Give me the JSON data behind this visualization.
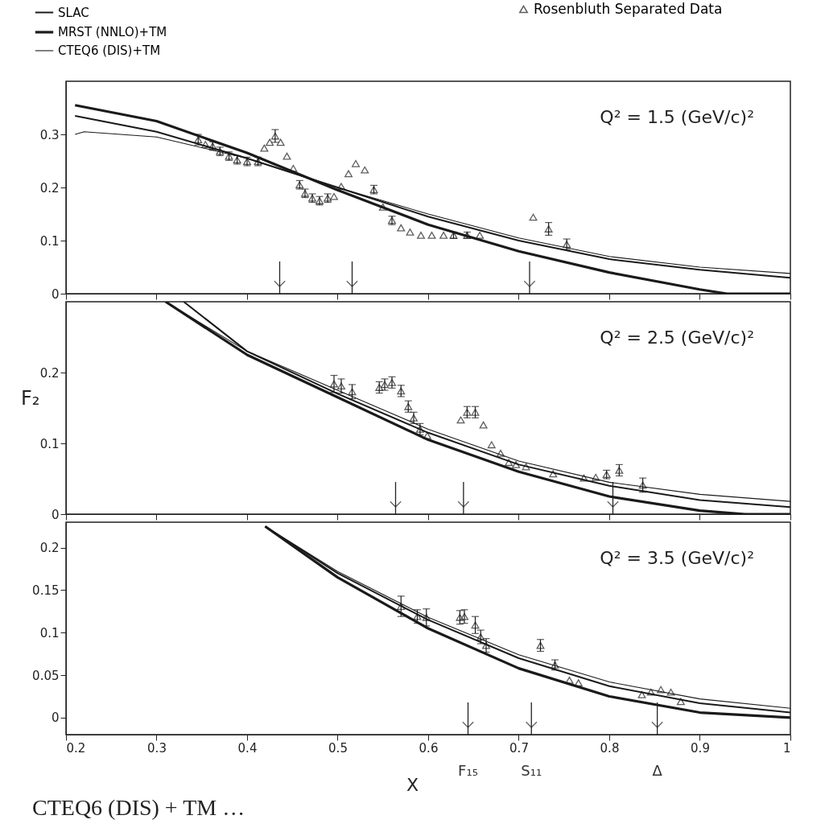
{
  "chart_data": [
    {
      "type": "line",
      "xlim": [
        0.2,
        1.0
      ],
      "xticks": [
        0.2,
        0.3,
        0.4,
        0.5,
        0.6,
        0.7,
        0.8,
        0.9,
        1
      ],
      "ylim": [
        0,
        0.4
      ],
      "yticks": [
        0,
        0.1,
        0.2,
        0.3
      ],
      "tick_labels": "y",
      "grid": false,
      "legend": "top",
      "annotations": [
        "Q² = 1.5 (GeV/c)²"
      ],
      "ref_lines": [
        {
          "axis": "x",
          "value": 0.436
        },
        {
          "axis": "x",
          "value": 0.516
        },
        {
          "axis": "x",
          "value": 0.712
        }
      ],
      "series": [
        {
          "name": "SLAC",
          "color": "#1a1a1a",
          "x": [
            0.21,
            0.3,
            0.4,
            0.5,
            0.6,
            0.7,
            0.8,
            0.9,
            1.0
          ],
          "values": [
            0.335,
            0.305,
            0.255,
            0.2,
            0.145,
            0.1,
            0.065,
            0.045,
            0.03
          ]
        },
        {
          "name": "MRST (NNLO)+TM",
          "color": "#1a1a1a",
          "x": [
            0.21,
            0.3,
            0.4,
            0.5,
            0.6,
            0.7,
            0.8,
            0.9,
            0.93,
            1.0
          ],
          "values": [
            0.355,
            0.325,
            0.265,
            0.195,
            0.13,
            0.08,
            0.04,
            0.008,
            0,
            0
          ]
        },
        {
          "name": "CTEQ6 (DIS)+TM",
          "color": "#1a1a1a",
          "x": [
            0.21,
            0.22,
            0.3,
            0.4,
            0.5,
            0.6,
            0.7,
            0.8,
            0.9,
            1.0
          ],
          "values": [
            0.3,
            0.305,
            0.295,
            0.255,
            0.2,
            0.15,
            0.105,
            0.07,
            0.05,
            0.038
          ]
        },
        {
          "name": "Rosenbluth Separated Data",
          "type": "scatter",
          "marker": "triangle",
          "color": "#1a1a1a",
          "x": [
            0.346,
            0.354,
            0.362,
            0.37,
            0.38,
            0.389,
            0.4,
            0.412,
            0.419,
            0.425,
            0.431,
            0.437,
            0.444,
            0.451,
            0.458,
            0.464,
            0.472,
            0.48,
            0.489,
            0.496,
            0.504,
            0.512,
            0.52,
            0.53,
            0.54,
            0.55,
            0.56,
            0.57,
            0.58,
            0.592,
            0.604,
            0.617,
            0.628,
            0.643,
            0.657,
            0.716,
            0.733,
            0.753
          ],
          "values": [
            0.29,
            0.281,
            0.278,
            0.268,
            0.259,
            0.252,
            0.249,
            0.249,
            0.274,
            0.285,
            0.297,
            0.285,
            0.259,
            0.236,
            0.205,
            0.189,
            0.18,
            0.175,
            0.18,
            0.183,
            0.202,
            0.226,
            0.245,
            0.233,
            0.196,
            0.163,
            0.138,
            0.124,
            0.116,
            0.11,
            0.11,
            0.11,
            0.11,
            0.11,
            0.11,
            0.144,
            0.122,
            0.093
          ],
          "errors": [
            0.01,
            null,
            0.008,
            0.008,
            0.008,
            0.008,
            0.008,
            0.008,
            null,
            null,
            0.012,
            null,
            null,
            null,
            0.008,
            0.008,
            0.008,
            0.008,
            0.008,
            null,
            null,
            null,
            null,
            null,
            0.008,
            null,
            0.008,
            null,
            null,
            null,
            null,
            null,
            0.006,
            0.006,
            null,
            null,
            0.012,
            0.01
          ]
        }
      ]
    },
    {
      "type": "line",
      "xlim": [
        0.2,
        1.0
      ],
      "xticks": [
        0.2,
        0.3,
        0.4,
        0.5,
        0.6,
        0.7,
        0.8,
        0.9,
        1
      ],
      "ylim": [
        0,
        0.3
      ],
      "yticks": [
        0,
        0.1,
        0.2
      ],
      "tick_labels": "y",
      "grid": false,
      "ylabel": "F₂",
      "annotations": [
        "Q² = 2.5 (GeV/c)²"
      ],
      "ref_lines": [
        {
          "axis": "x",
          "value": 0.564
        },
        {
          "axis": "x",
          "value": 0.639
        },
        {
          "axis": "x",
          "value": 0.804
        }
      ],
      "series": [
        {
          "color": "#1a1a1a",
          "x": [
            0.33,
            0.4,
            0.5,
            0.6,
            0.7,
            0.8,
            0.9,
            1.0
          ],
          "values": [
            0.3,
            0.23,
            0.17,
            0.115,
            0.07,
            0.04,
            0.02,
            0.01
          ]
        },
        {
          "color": "#1a1a1a",
          "x": [
            0.31,
            0.4,
            0.5,
            0.6,
            0.7,
            0.8,
            0.9,
            0.95,
            1.0
          ],
          "values": [
            0.3,
            0.225,
            0.165,
            0.105,
            0.06,
            0.025,
            0.005,
            0,
            0
          ]
        },
        {
          "color": "#1a1a1a",
          "x": [
            0.31,
            0.4,
            0.5,
            0.6,
            0.7,
            0.8,
            0.9,
            1.0
          ],
          "values": [
            0.3,
            0.23,
            0.175,
            0.12,
            0.075,
            0.045,
            0.028,
            0.018
          ]
        },
        {
          "type": "scatter",
          "marker": "triangle",
          "color": "#1a1a1a",
          "x": [
            0.496,
            0.504,
            0.516,
            0.546,
            0.552,
            0.56,
            0.57,
            0.578,
            0.584,
            0.591,
            0.599,
            0.636,
            0.643,
            0.652,
            0.661,
            0.67,
            0.68,
            0.689,
            0.697,
            0.708,
            0.738,
            0.772,
            0.785,
            0.797,
            0.811,
            0.837
          ],
          "values": [
            0.184,
            0.181,
            0.173,
            0.179,
            0.183,
            0.186,
            0.174,
            0.152,
            0.136,
            0.12,
            0.111,
            0.133,
            0.144,
            0.144,
            0.126,
            0.098,
            0.086,
            0.073,
            0.07,
            0.067,
            0.057,
            0.051,
            0.052,
            0.056,
            0.062,
            0.041
          ],
          "errors": [
            0.012,
            0.01,
            0.01,
            0.008,
            0.008,
            0.008,
            0.008,
            0.008,
            0.008,
            0.008,
            null,
            null,
            0.008,
            0.008,
            null,
            null,
            null,
            null,
            null,
            null,
            null,
            null,
            null,
            0.006,
            0.008,
            0.01
          ]
        }
      ]
    },
    {
      "type": "line",
      "xlim": [
        0.2,
        1.0
      ],
      "xticks": [
        0.2,
        0.3,
        0.4,
        0.5,
        0.6,
        0.7,
        0.8,
        0.9,
        1
      ],
      "ylim": [
        -0.02,
        0.23
      ],
      "yticks": [
        0,
        0.05,
        0.1,
        0.15,
        0.2
      ],
      "grid": false,
      "xlabel": "X",
      "annotations": [
        "Q² = 3.5 (GeV/c)²",
        "CTEQ6 (DIS) + TM …"
      ],
      "ref_lines": [
        {
          "axis": "x",
          "value": 0.644,
          "label": "F₁₅"
        },
        {
          "axis": "x",
          "value": 0.714,
          "label": "S₁₁"
        },
        {
          "axis": "x",
          "value": 0.853,
          "label": "Δ"
        }
      ],
      "series": [
        {
          "color": "#1a1a1a",
          "x": [
            0.42,
            0.5,
            0.6,
            0.7,
            0.8,
            0.9,
            1.0
          ],
          "values": [
            0.225,
            0.17,
            0.115,
            0.07,
            0.037,
            0.017,
            0.006
          ]
        },
        {
          "color": "#1a1a1a",
          "x": [
            0.42,
            0.5,
            0.6,
            0.7,
            0.8,
            0.9,
            1.0
          ],
          "values": [
            0.225,
            0.165,
            0.105,
            0.058,
            0.025,
            0.006,
            0
          ]
        },
        {
          "color": "#1a1a1a",
          "x": [
            0.42,
            0.5,
            0.6,
            0.7,
            0.8,
            0.9,
            1.0
          ],
          "values": [
            0.225,
            0.172,
            0.118,
            0.074,
            0.042,
            0.022,
            0.011
          ]
        },
        {
          "type": "scatter",
          "marker": "triangle",
          "color": "#1a1a1a",
          "x": [
            0.57,
            0.588,
            0.598,
            0.635,
            0.64,
            0.652,
            0.658,
            0.664,
            0.724,
            0.74,
            0.756,
            0.766,
            0.836,
            0.846,
            0.857,
            0.868,
            0.879
          ],
          "values": [
            0.131,
            0.119,
            0.118,
            0.118,
            0.119,
            0.109,
            0.095,
            0.085,
            0.085,
            0.062,
            0.044,
            0.041,
            0.027,
            0.03,
            0.033,
            0.03,
            0.019
          ],
          "errors": [
            0.012,
            0.008,
            0.01,
            0.008,
            0.008,
            0.01,
            0.008,
            0.008,
            0.007,
            0.006,
            null,
            null,
            null,
            null,
            null,
            null,
            null
          ]
        }
      ]
    }
  ]
}
